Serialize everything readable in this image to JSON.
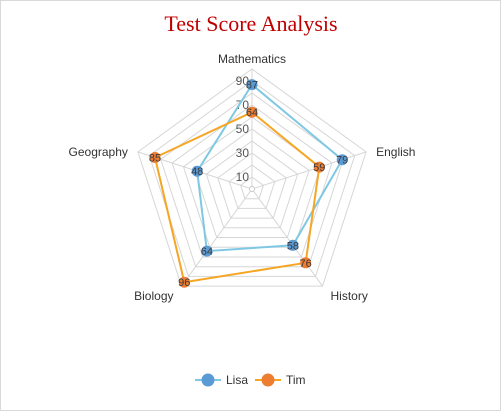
{
  "chart_data": {
    "type": "radar",
    "title": "Test Score Analysis",
    "categories": [
      "Mathematics",
      "English",
      "History",
      "Biology",
      "Geography"
    ],
    "ticks": [
      10,
      30,
      50,
      70,
      90
    ],
    "rlim": [
      0,
      100
    ],
    "grid": true,
    "legend_position": "bottom",
    "series": [
      {
        "name": "Lisa",
        "color": "#5b9bd5",
        "line_color": "#7ec8e3",
        "values": [
          87,
          79,
          58,
          64,
          48
        ]
      },
      {
        "name": "Tim",
        "color": "#ed7d31",
        "line_color": "#f5a623",
        "values": [
          64,
          59,
          76,
          96,
          85
        ]
      }
    ]
  }
}
